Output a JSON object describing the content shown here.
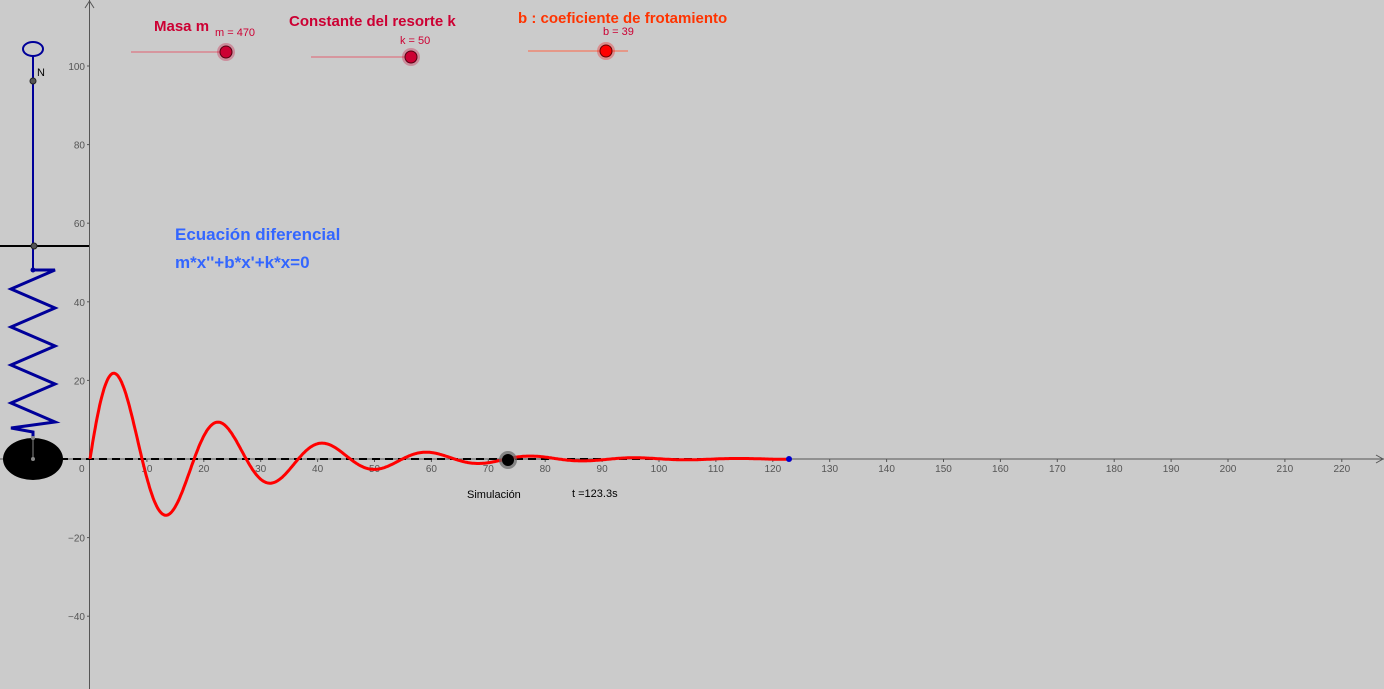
{
  "colors": {
    "background": "#cbcbcb",
    "slider_m": "#cc0033",
    "slider_k": "#cc0033",
    "slider_b": "#ff3300",
    "curve": "#ff0000",
    "spring": "#000099",
    "equation": "#3366ff"
  },
  "sliders": {
    "m": {
      "title": "Masa m",
      "value_label": "m = 470",
      "value": 470
    },
    "k": {
      "title": "Constante del resorte k",
      "value_label": "k = 50",
      "value": 50
    },
    "b": {
      "title": "b : coeficiente de frotamiento",
      "value_label": "b = 39",
      "value": 39
    }
  },
  "equation": {
    "title": "Ecuación diferencial",
    "formula": "m*x''+b*x'+k*x=0"
  },
  "spring": {
    "top_point_label": "N"
  },
  "simulation": {
    "label": "Simulación",
    "time_label": "t =123.3s",
    "t_end": 123.3
  },
  "axes": {
    "x_ticks": [
      0,
      10,
      20,
      30,
      40,
      50,
      60,
      70,
      80,
      90,
      100,
      110,
      120,
      130,
      140,
      150,
      160,
      170,
      180,
      190,
      200,
      210,
      220
    ],
    "y_ticks": [
      100,
      80,
      60,
      40,
      20,
      -20,
      -40
    ]
  },
  "chart_data": {
    "type": "line",
    "series": [
      {
        "x": [
          0,
          4.6,
          9.1,
          13.7,
          18.3,
          22.8,
          27.4,
          32.0,
          36.5,
          41.1,
          45.7,
          50.2,
          54.8,
          59.4,
          63.9,
          68.5,
          73.1,
          77.6,
          82.2,
          86.8,
          91.3,
          95.9,
          100.5,
          105.0,
          109.6,
          114.2,
          118.7,
          123.3
        ],
        "y": [
          0,
          21.6,
          0,
          -14.2,
          0,
          9.3,
          0,
          -6.1,
          0,
          4.0,
          0,
          -2.6,
          0,
          1.7,
          0,
          -1.1,
          0,
          0.7,
          0,
          -0.5,
          0,
          0.3,
          0,
          -0.2,
          0,
          0.1,
          0,
          0
        ]
      }
    ],
    "xlim": [
      -15,
      227
    ],
    "ylim": [
      -58,
      117
    ]
  }
}
